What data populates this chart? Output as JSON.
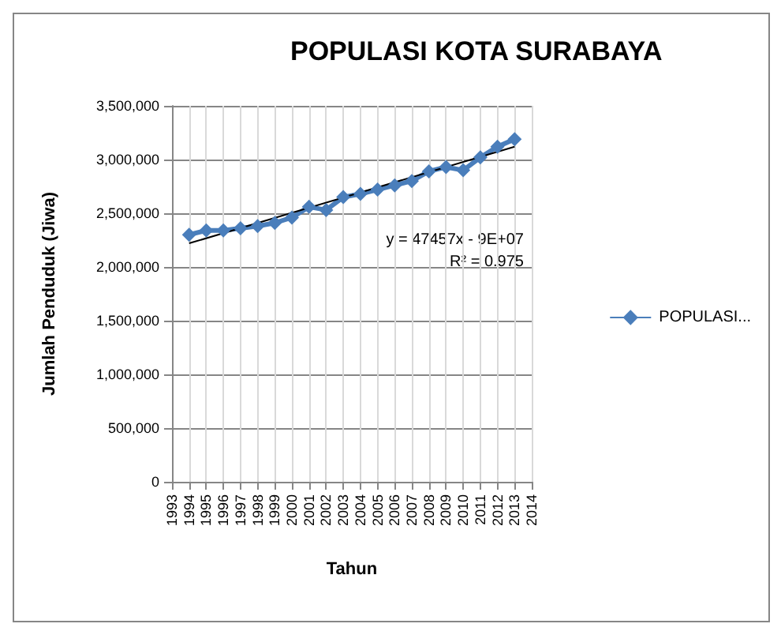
{
  "chart_data": {
    "type": "line",
    "title": "POPULASI KOTA SURABAYA",
    "xlabel": "Tahun",
    "ylabel": "Jumlah Penduduk (Jiwa)",
    "x": [
      1994,
      1995,
      1996,
      1997,
      1998,
      1999,
      2000,
      2001,
      2002,
      2003,
      2004,
      2005,
      2006,
      2007,
      2008,
      2009,
      2010,
      2011,
      2012,
      2013
    ],
    "series": [
      {
        "name": "POPULASI...",
        "color": "#4a7ebb",
        "marker": "diamond",
        "values": [
          2300000,
          2340000,
          2340000,
          2360000,
          2380000,
          2410000,
          2460000,
          2560000,
          2530000,
          2650000,
          2680000,
          2720000,
          2760000,
          2800000,
          2890000,
          2930000,
          2900000,
          3020000,
          3120000,
          3190000
        ]
      },
      {
        "type": "line",
        "color": "#000000",
        "marker": "none",
        "x": [
          1994,
          2013
        ],
        "values": [
          2220000,
          3120000
        ]
      }
    ],
    "annotations": [
      "y = 47457x - 9E+07",
      "R² = 0.975"
    ],
    "xlim": [
      1993,
      2014
    ],
    "xticks": [
      1993,
      1994,
      1995,
      1996,
      1997,
      1998,
      1999,
      2000,
      2001,
      2002,
      2003,
      2004,
      2005,
      2006,
      2007,
      2008,
      2009,
      2010,
      2011,
      2012,
      2013,
      2014
    ],
    "ylim": [
      0,
      3500000
    ],
    "yticks": [
      0,
      {
        "value": 500000,
        "label": "500,000"
      },
      {
        "value": 1000000,
        "label": "1,000,000"
      },
      {
        "value": 1500000,
        "label": "1,500,000"
      },
      {
        "value": 2000000,
        "label": "2,000,000"
      },
      {
        "value": 2500000,
        "label": "2,500,000"
      },
      {
        "value": 3000000,
        "label": "3,000,000"
      },
      {
        "value": 3500000,
        "label": "3,500,000"
      }
    ],
    "grid": true,
    "legend": "right"
  }
}
